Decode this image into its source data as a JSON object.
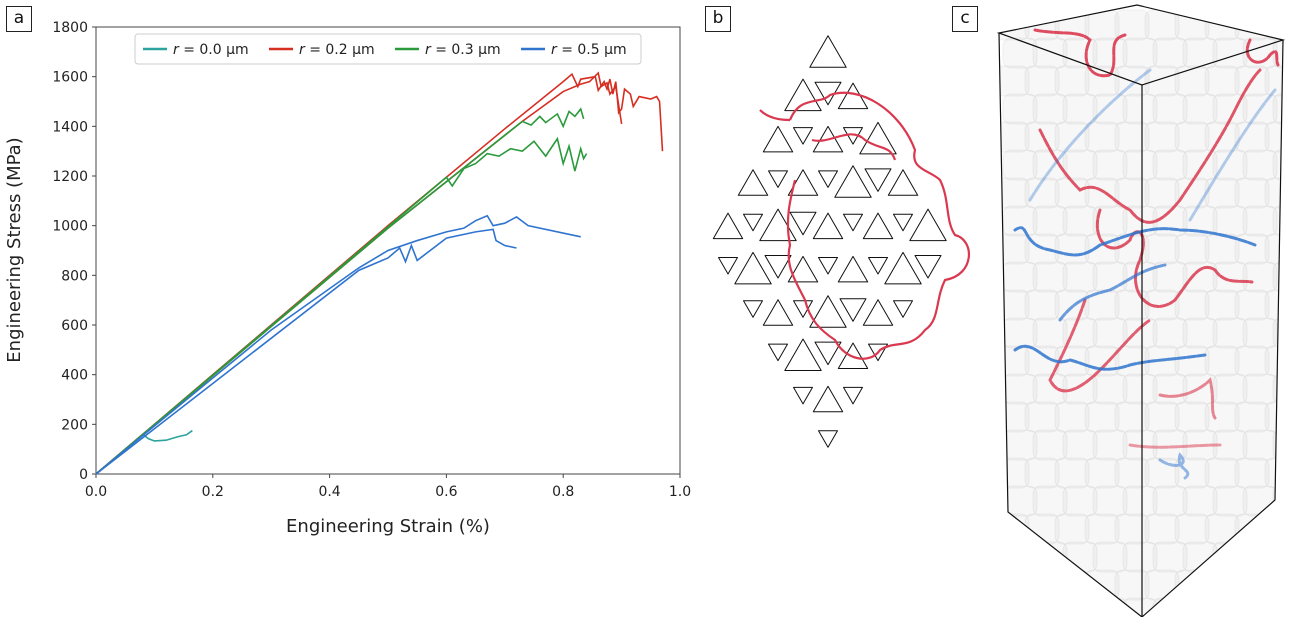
{
  "panels": {
    "a": "a",
    "b": "b",
    "c": "c"
  },
  "chart_data": {
    "type": "line",
    "xlabel": "Engineering Strain (%)",
    "ylabel": "Engineering Stress (MPa)",
    "xlim": [
      0,
      1.0
    ],
    "ylim": [
      0,
      1800
    ],
    "xticks": [
      "0.0",
      "0.2",
      "0.4",
      "0.6",
      "0.8",
      "1.0"
    ],
    "yticks": [
      "0",
      "200",
      "400",
      "600",
      "800",
      "1000",
      "1200",
      "1400",
      "1600",
      "1800"
    ],
    "grid": false,
    "legend_position": "top-center",
    "series": [
      {
        "name": "r = 0.0 μm",
        "r_symbol": "r",
        "r_value": " = 0.0 μm",
        "color": "#2ca39c",
        "curves": [
          [
            [
              0,
              0
            ],
            [
              0.08,
              160
            ],
            [
              0.09,
              142
            ],
            [
              0.1,
              133
            ],
            [
              0.12,
              136
            ],
            [
              0.14,
              150
            ],
            [
              0.155,
              158
            ],
            [
              0.165,
              175
            ]
          ]
        ]
      },
      {
        "name": "r = 0.2 μm",
        "r_symbol": "r",
        "r_value": " = 0.2 μm",
        "color": "#d62f22",
        "curves": [
          [
            [
              0,
              0
            ],
            [
              0.3,
              600
            ],
            [
              0.5,
              1000
            ],
            [
              0.7,
              1390
            ],
            [
              0.8,
              1580
            ],
            [
              0.815,
              1610
            ],
            [
              0.825,
              1560
            ],
            [
              0.83,
              1590
            ],
            [
              0.855,
              1600
            ],
            [
              0.86,
              1545
            ],
            [
              0.87,
              1580
            ],
            [
              0.875,
              1550
            ],
            [
              0.88,
              1590
            ],
            [
              0.885,
              1530
            ],
            [
              0.89,
              1580
            ],
            [
              0.895,
              1455
            ],
            [
              0.9,
              1470
            ],
            [
              0.905,
              1550
            ],
            [
              0.915,
              1530
            ],
            [
              0.92,
              1480
            ],
            [
              0.93,
              1520
            ],
            [
              0.95,
              1510
            ],
            [
              0.96,
              1520
            ],
            [
              0.965,
              1500
            ],
            [
              0.97,
              1300
            ]
          ],
          [
            [
              0,
              0
            ],
            [
              0.5,
              990
            ],
            [
              0.73,
              1420
            ],
            [
              0.8,
              1540
            ],
            [
              0.83,
              1570
            ],
            [
              0.845,
              1580
            ],
            [
              0.86,
              1615
            ],
            [
              0.865,
              1560
            ],
            [
              0.875,
              1575
            ],
            [
              0.88,
              1530
            ],
            [
              0.89,
              1560
            ],
            [
              0.9,
              1410
            ]
          ]
        ]
      },
      {
        "name": "r = 0.3 μm",
        "r_symbol": "r",
        "r_value": " = 0.3 μm",
        "color": "#2a9a3c",
        "curves": [
          [
            [
              0,
              0
            ],
            [
              0.5,
              990
            ],
            [
              0.73,
              1420
            ],
            [
              0.745,
              1405
            ],
            [
              0.76,
              1440
            ],
            [
              0.77,
              1415
            ],
            [
              0.79,
              1450
            ],
            [
              0.8,
              1400
            ],
            [
              0.81,
              1460
            ],
            [
              0.82,
              1440
            ],
            [
              0.83,
              1470
            ],
            [
              0.835,
              1430
            ]
          ],
          [
            [
              0,
              0
            ],
            [
              0.6,
              1195
            ],
            [
              0.61,
              1160
            ],
            [
              0.63,
              1230
            ],
            [
              0.65,
              1250
            ],
            [
              0.67,
              1290
            ],
            [
              0.69,
              1280
            ],
            [
              0.71,
              1310
            ],
            [
              0.73,
              1300
            ],
            [
              0.75,
              1340
            ],
            [
              0.77,
              1280
            ],
            [
              0.79,
              1350
            ],
            [
              0.8,
              1250
            ],
            [
              0.81,
              1320
            ],
            [
              0.82,
              1220
            ],
            [
              0.83,
              1310
            ],
            [
              0.835,
              1270
            ],
            [
              0.84,
              1290
            ]
          ]
        ]
      },
      {
        "name": "r = 0.5 μm",
        "r_symbol": "r",
        "r_value": " = 0.5 μm",
        "color": "#2f74cf",
        "curves": [
          [
            [
              0,
              0
            ],
            [
              0.3,
              580
            ],
            [
              0.45,
              830
            ],
            [
              0.5,
              900
            ],
            [
              0.55,
              940
            ],
            [
              0.6,
              975
            ],
            [
              0.63,
              990
            ],
            [
              0.65,
              1020
            ],
            [
              0.67,
              1040
            ],
            [
              0.68,
              1000
            ],
            [
              0.7,
              1010
            ],
            [
              0.72,
              1035
            ],
            [
              0.74,
              1000
            ],
            [
              0.83,
              955
            ]
          ],
          [
            [
              0,
              0
            ],
            [
              0.45,
              820
            ],
            [
              0.5,
              870
            ],
            [
              0.52,
              910
            ],
            [
              0.53,
              855
            ],
            [
              0.54,
              920
            ],
            [
              0.55,
              860
            ],
            [
              0.6,
              950
            ],
            [
              0.65,
              975
            ],
            [
              0.68,
              985
            ],
            [
              0.685,
              940
            ],
            [
              0.7,
              920
            ],
            [
              0.72,
              910
            ]
          ]
        ]
      }
    ]
  },
  "colors": {
    "dislocation_red": "#d9384f",
    "dislocation_blue": "#2f74cf",
    "outline": "#111111"
  }
}
